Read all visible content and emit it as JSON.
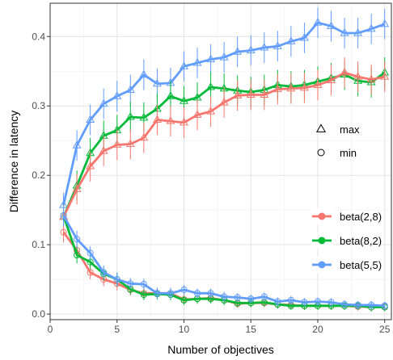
{
  "chart_data": {
    "type": "line",
    "xlabel": "Number of objectives",
    "ylabel": "Difference in latency",
    "xlim": [
      0,
      25.5
    ],
    "ylim": [
      -0.008,
      0.448
    ],
    "x_ticks": [
      0,
      5,
      10,
      15,
      20,
      25
    ],
    "y_ticks": [
      0.0,
      0.1,
      0.2,
      0.3,
      0.4
    ],
    "y_tick_labels": [
      "0.0",
      "0.1",
      "0.2",
      "0.3",
      "0.4"
    ],
    "grid": true,
    "legend": {
      "shape_entries": [
        {
          "label": "max",
          "marker": "triangle"
        },
        {
          "label": "min",
          "marker": "circle"
        }
      ],
      "color_entries": [
        {
          "label": "beta(2,8)",
          "color": "#F8766D"
        },
        {
          "label": "beta(8,2)",
          "color": "#00BA38"
        },
        {
          "label": "beta(5,5)",
          "color": "#619CFF"
        }
      ],
      "placement": "right-inside"
    },
    "x": [
      1,
      2,
      3,
      4,
      5,
      6,
      7,
      8,
      9,
      10,
      11,
      12,
      13,
      14,
      15,
      16,
      17,
      18,
      19,
      20,
      21,
      22,
      23,
      24,
      25
    ],
    "series": [
      {
        "name": "beta(5,5)",
        "stat": "max",
        "color": "#619CFF",
        "marker": "triangle",
        "values": [
          0.157,
          0.243,
          0.28,
          0.303,
          0.314,
          0.323,
          0.345,
          0.332,
          0.333,
          0.357,
          0.362,
          0.367,
          0.37,
          0.378,
          0.38,
          0.384,
          0.386,
          0.393,
          0.398,
          0.42,
          0.415,
          0.405,
          0.405,
          0.411,
          0.418
        ],
        "error": [
          0.018,
          0.022,
          0.022,
          0.022,
          0.022,
          0.022,
          0.022,
          0.022,
          0.022,
          0.022,
          0.022,
          0.022,
          0.022,
          0.022,
          0.022,
          0.022,
          0.022,
          0.022,
          0.022,
          0.022,
          0.022,
          0.022,
          0.022,
          0.022,
          0.022
        ]
      },
      {
        "name": "beta(8,2)",
        "stat": "max",
        "color": "#00BA38",
        "marker": "triangle",
        "values": [
          0.14,
          0.185,
          0.232,
          0.257,
          0.265,
          0.284,
          0.283,
          0.296,
          0.314,
          0.307,
          0.312,
          0.327,
          0.325,
          0.322,
          0.32,
          0.323,
          0.33,
          0.328,
          0.33,
          0.335,
          0.34,
          0.345,
          0.336,
          0.334,
          0.348
        ],
        "error": [
          0.018,
          0.022,
          0.022,
          0.022,
          0.022,
          0.022,
          0.022,
          0.022,
          0.022,
          0.022,
          0.022,
          0.022,
          0.022,
          0.022,
          0.022,
          0.022,
          0.022,
          0.022,
          0.022,
          0.022,
          0.022,
          0.022,
          0.022,
          0.022,
          0.022
        ]
      },
      {
        "name": "beta(2,8)",
        "stat": "max",
        "color": "#F8766D",
        "marker": "triangle",
        "values": [
          0.14,
          0.18,
          0.213,
          0.235,
          0.244,
          0.245,
          0.254,
          0.28,
          0.278,
          0.276,
          0.287,
          0.292,
          0.305,
          0.315,
          0.316,
          0.316,
          0.324,
          0.325,
          0.326,
          0.33,
          0.337,
          0.348,
          0.342,
          0.338,
          0.342
        ],
        "error": [
          0.018,
          0.022,
          0.022,
          0.022,
          0.022,
          0.022,
          0.022,
          0.022,
          0.022,
          0.022,
          0.022,
          0.022,
          0.022,
          0.022,
          0.022,
          0.022,
          0.022,
          0.022,
          0.022,
          0.022,
          0.022,
          0.022,
          0.022,
          0.022,
          0.022
        ]
      },
      {
        "name": "beta(2,8)",
        "stat": "min",
        "color": "#F8766D",
        "marker": "circle",
        "values": [
          0.118,
          0.092,
          0.06,
          0.05,
          0.044,
          0.035,
          0.03,
          0.03,
          0.03,
          0.021,
          0.022,
          0.023,
          0.02,
          0.015,
          0.016,
          0.016,
          0.014,
          0.013,
          0.012,
          0.012,
          0.012,
          0.012,
          0.011,
          0.01,
          0.011
        ],
        "error": [
          0.015,
          0.012,
          0.01,
          0.01,
          0.01,
          0.008,
          0.008,
          0.008,
          0.008,
          0.007,
          0.007,
          0.007,
          0.007,
          0.006,
          0.006,
          0.006,
          0.006,
          0.006,
          0.006,
          0.006,
          0.006,
          0.006,
          0.006,
          0.006,
          0.006
        ]
      },
      {
        "name": "beta(8,2)",
        "stat": "min",
        "color": "#00BA38",
        "marker": "circle",
        "values": [
          0.142,
          0.085,
          0.075,
          0.058,
          0.05,
          0.036,
          0.028,
          0.029,
          0.028,
          0.02,
          0.022,
          0.022,
          0.02,
          0.016,
          0.016,
          0.017,
          0.014,
          0.012,
          0.012,
          0.012,
          0.012,
          0.012,
          0.012,
          0.01,
          0.01
        ],
        "error": [
          0.015,
          0.012,
          0.01,
          0.01,
          0.01,
          0.008,
          0.008,
          0.008,
          0.008,
          0.007,
          0.007,
          0.007,
          0.007,
          0.006,
          0.006,
          0.006,
          0.006,
          0.006,
          0.006,
          0.006,
          0.006,
          0.006,
          0.006,
          0.006,
          0.006
        ]
      },
      {
        "name": "beta(5,5)",
        "stat": "min",
        "color": "#619CFF",
        "marker": "circle",
        "values": [
          0.142,
          0.108,
          0.088,
          0.06,
          0.05,
          0.044,
          0.043,
          0.03,
          0.03,
          0.035,
          0.03,
          0.03,
          0.025,
          0.024,
          0.022,
          0.025,
          0.018,
          0.02,
          0.017,
          0.018,
          0.017,
          0.014,
          0.013,
          0.013,
          0.012
        ],
        "error": [
          0.015,
          0.012,
          0.01,
          0.01,
          0.01,
          0.008,
          0.008,
          0.008,
          0.008,
          0.007,
          0.007,
          0.007,
          0.007,
          0.006,
          0.006,
          0.006,
          0.006,
          0.006,
          0.006,
          0.006,
          0.006,
          0.006,
          0.006,
          0.006,
          0.006
        ]
      }
    ]
  }
}
